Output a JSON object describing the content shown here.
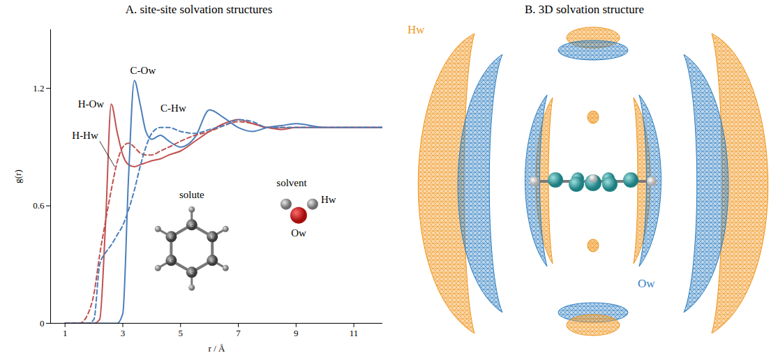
{
  "chart_data": {
    "type": "line",
    "title": "A. site-site solvation structures",
    "x_label": "r / Å",
    "y_label": "g(r)",
    "xlim": [
      0.5,
      12
    ],
    "ylim": [
      0,
      1.5
    ],
    "xticks": [
      1,
      3,
      5,
      7,
      9,
      11
    ],
    "yticks": [
      0,
      0.6,
      1.2
    ],
    "x": [
      1,
      1.5,
      1.8,
      2.0,
      2.2,
      2.4,
      2.6,
      2.8,
      3.0,
      3.2,
      3.4,
      3.6,
      3.8,
      4.0,
      4.3,
      4.6,
      5.0,
      5.5,
      6.0,
      6.5,
      7.0,
      7.5,
      8.0,
      8.5,
      9.0,
      10,
      11,
      12
    ],
    "series": [
      {
        "name": "H-Ow",
        "color": "#c0504d",
        "line_style": "solid",
        "values": [
          0,
          0,
          0,
          0,
          0.02,
          0.5,
          1.12,
          0.98,
          0.86,
          0.81,
          0.8,
          0.81,
          0.82,
          0.83,
          0.84,
          0.86,
          0.88,
          0.93,
          0.98,
          1.02,
          1.04,
          1.02,
          1.0,
          0.99,
          1.0,
          1.0,
          1.0,
          1.0
        ]
      },
      {
        "name": "C-Ow",
        "color": "#4a7ebb",
        "line_style": "solid",
        "values": [
          0,
          0,
          0,
          0,
          0,
          0,
          0,
          0,
          0.05,
          0.75,
          1.24,
          1.12,
          0.98,
          0.94,
          0.96,
          0.93,
          0.9,
          0.95,
          1.09,
          1.05,
          1.0,
          0.98,
          1.0,
          1.01,
          1.02,
          1.0,
          1.0,
          1.0
        ]
      },
      {
        "name": "H-Hw",
        "color": "#c0504d",
        "line_style": "dashed",
        "values": [
          0,
          0,
          0.05,
          0.15,
          0.35,
          0.52,
          0.68,
          0.82,
          0.9,
          0.92,
          0.9,
          0.87,
          0.86,
          0.86,
          0.88,
          0.9,
          0.93,
          0.96,
          0.98,
          1.01,
          1.03,
          1.02,
          1.0,
          1.0,
          1.0,
          1.0,
          1.0,
          1.0
        ]
      },
      {
        "name": "C-Hw",
        "color": "#4a7ebb",
        "line_style": "dashed",
        "values": [
          0,
          0,
          0,
          0.02,
          0.3,
          0.36,
          0.4,
          0.45,
          0.5,
          0.58,
          0.68,
          0.8,
          0.9,
          0.97,
          1.0,
          1.0,
          0.98,
          0.97,
          0.99,
          1.01,
          1.04,
          1.03,
          1.0,
          1.0,
          1.0,
          1.0,
          1.0,
          1.0
        ]
      }
    ],
    "annotations": [
      "solute",
      "solvent",
      "Hw",
      "Ow",
      "C"
    ]
  },
  "panel_b": {
    "title": "B. 3D solvation structure",
    "labels": [
      "Hw",
      "Ow"
    ],
    "colors": [
      "#f0961e",
      "#2f7fc1"
    ]
  }
}
